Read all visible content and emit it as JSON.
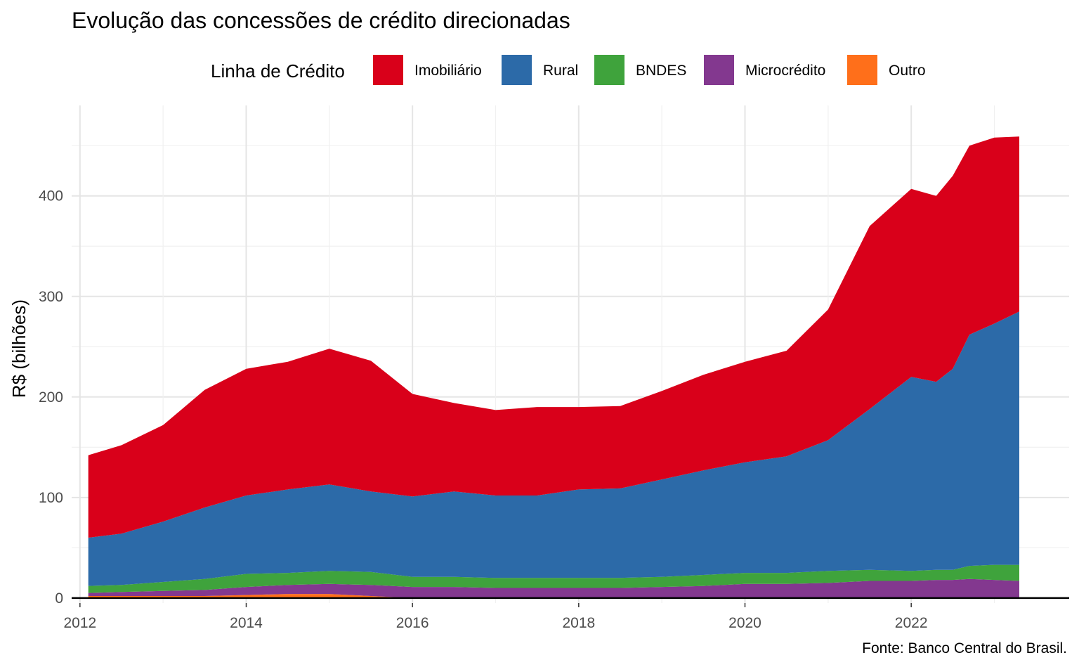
{
  "chart_data": {
    "type": "area",
    "stacked": true,
    "title": "Evolução das concessões de crédito direcionadas",
    "caption": "Fonte: Banco Central do Brasil.",
    "xlabel": "",
    "ylabel": "R$ (bilhões)",
    "legend": {
      "title": "Linha de Crédito",
      "position": "top"
    },
    "grid": true,
    "xlim": [
      2011.9,
      2023.9
    ],
    "ylim": [
      -5,
      490
    ],
    "x_ticks": [
      "2012",
      "2014",
      "2016",
      "2018",
      "2020",
      "2022"
    ],
    "y_ticks": [
      "0",
      "100",
      "200",
      "300",
      "400"
    ],
    "x": [
      2012.1,
      2012.5,
      2013.0,
      2013.5,
      2014.0,
      2014.5,
      2015.0,
      2015.5,
      2016.0,
      2016.5,
      2017.0,
      2017.5,
      2018.0,
      2018.5,
      2019.0,
      2019.5,
      2020.0,
      2020.5,
      2021.0,
      2021.5,
      2022.0,
      2022.3,
      2022.5,
      2022.7,
      2023.0,
      2023.3
    ],
    "series": [
      {
        "name": "Outro",
        "color": "#ff6f1a",
        "values": [
          2,
          2,
          2,
          2,
          3,
          4,
          4,
          2,
          0,
          0,
          0,
          0,
          0,
          0,
          0,
          0,
          0,
          0,
          0,
          0,
          0,
          0,
          0,
          0,
          0,
          0
        ]
      },
      {
        "name": "Microcrédito",
        "color": "#83388f",
        "values": [
          3,
          4,
          5,
          6,
          8,
          9,
          10,
          11,
          11,
          11,
          10,
          10,
          10,
          10,
          11,
          12,
          14,
          14,
          15,
          17,
          17,
          18,
          18,
          19,
          18,
          17
        ]
      },
      {
        "name": "BNDES",
        "color": "#3fa33c",
        "values": [
          7,
          7,
          9,
          11,
          13,
          12,
          13,
          13,
          10,
          10,
          10,
          10,
          10,
          10,
          10,
          11,
          11,
          11,
          12,
          11,
          10,
          10,
          10,
          13,
          15,
          16
        ]
      },
      {
        "name": "Rural",
        "color": "#2c6aa8",
        "values": [
          48,
          51,
          60,
          71,
          78,
          83,
          86,
          80,
          80,
          85,
          82,
          82,
          88,
          89,
          97,
          104,
          110,
          116,
          130,
          160,
          193,
          187,
          200,
          230,
          240,
          252
        ]
      },
      {
        "name": "Imobiliário",
        "color": "#d9001a",
        "values": [
          82,
          88,
          96,
          117,
          126,
          127,
          135,
          130,
          102,
          88,
          85,
          88,
          82,
          82,
          88,
          95,
          100,
          105,
          130,
          182,
          187,
          185,
          192,
          188,
          185,
          174
        ]
      }
    ]
  }
}
